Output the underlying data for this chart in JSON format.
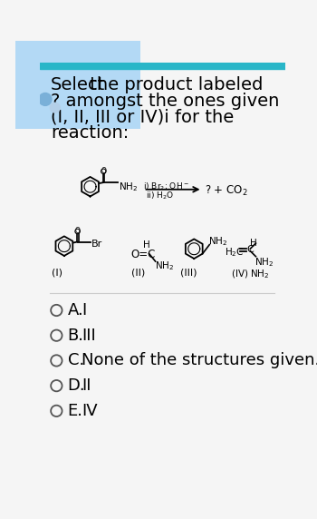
{
  "bg_color": "#f5f5f5",
  "top_bar_color": "#29b6c8",
  "title_lines": [
    "Select the product labeled",
    "? amongst the ones given",
    "(I, II, III or IV)i for the",
    "reaction:"
  ],
  "options": [
    {
      "letter": "A.",
      "text": "I"
    },
    {
      "letter": "B.",
      "text": "III"
    },
    {
      "letter": "C.",
      "text": "None of the structures given."
    },
    {
      "letter": "D.",
      "text": "II"
    },
    {
      "letter": "E.",
      "text": "IV"
    }
  ],
  "font_size_title": 14,
  "font_size_options": 13,
  "highlight_color": "#b3d9f5",
  "dot_color": "#7ab0d8",
  "dot2_color": "#b3cfe8"
}
